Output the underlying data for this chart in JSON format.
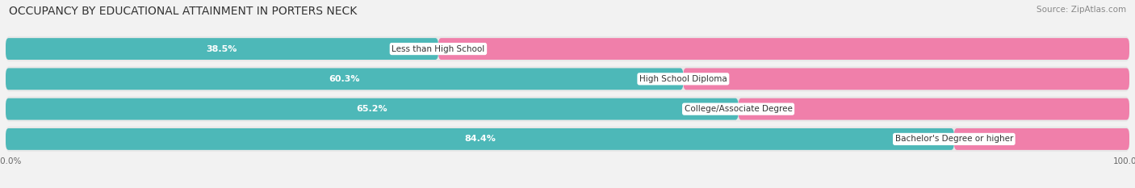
{
  "title": "OCCUPANCY BY EDUCATIONAL ATTAINMENT IN PORTERS NECK",
  "source": "Source: ZipAtlas.com",
  "categories": [
    "Less than High School",
    "High School Diploma",
    "College/Associate Degree",
    "Bachelor's Degree or higher"
  ],
  "owner_pct": [
    38.5,
    60.3,
    65.2,
    84.4
  ],
  "renter_pct": [
    61.5,
    39.7,
    34.8,
    15.6
  ],
  "owner_color": "#4db8b8",
  "renter_color": "#f07faa",
  "bar_height": 0.72,
  "row_bg_color": "#e8e8e8",
  "background_color": "#f2f2f2",
  "title_fontsize": 10,
  "label_fontsize": 8,
  "tick_fontsize": 7.5,
  "source_fontsize": 7.5,
  "legend_fontsize": 8
}
